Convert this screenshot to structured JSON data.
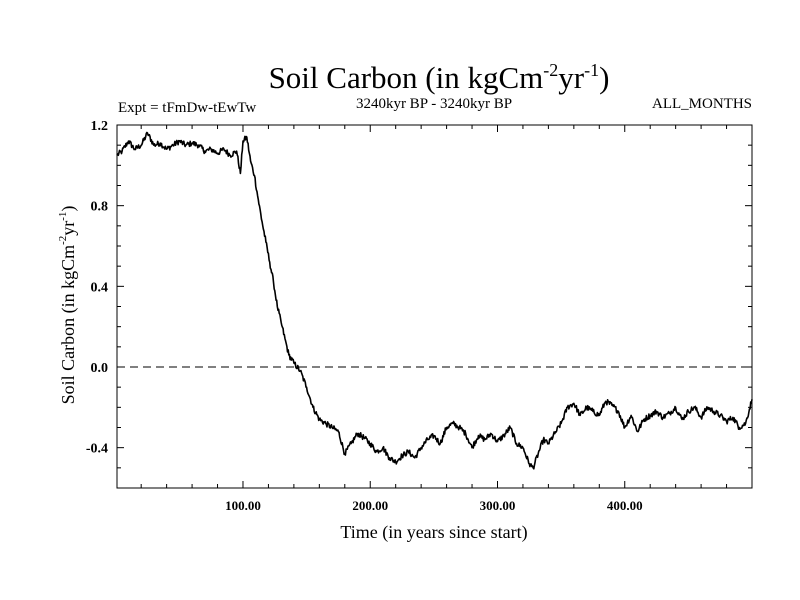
{
  "chart_data": {
    "type": "line",
    "title": "Soil Carbon (in kgCm",
    "title_sup1": "-2",
    "title_mid": "yr",
    "title_sup2": "-1",
    "title_end": ")",
    "subtitle_left": "Expt = tFmDw-tEwTw",
    "subtitle_center": "3240kyr BP - 3240kyr BP",
    "subtitle_right": "ALL_MONTHS",
    "xlabel": "Time (in years since start)",
    "ylabel": "Soil Carbon (in kgCm",
    "ylabel_sup1": "-2",
    "ylabel_mid": "yr",
    "ylabel_sup2": "-1",
    "ylabel_end": ")",
    "xlim": [
      1,
      500
    ],
    "ylim": [
      -0.6,
      1.2
    ],
    "x_ticks": [
      {
        "value": 100,
        "label": "100.00"
      },
      {
        "value": 200,
        "label": "200.00"
      },
      {
        "value": 300,
        "label": "300.00"
      },
      {
        "value": 400,
        "label": "400.00"
      }
    ],
    "y_ticks": [
      {
        "value": 1.2,
        "label": "1.2"
      },
      {
        "value": 0.8,
        "label": "0.8"
      },
      {
        "value": 0.4,
        "label": "0.4"
      },
      {
        "value": 0.0,
        "label": "0.0"
      },
      {
        "value": -0.4,
        "label": "-0.4"
      }
    ],
    "zero_line": 0.0,
    "series": [
      {
        "name": "Soil Carbon",
        "color": "#000000",
        "x": [
          1,
          5,
          10,
          15,
          20,
          25,
          30,
          35,
          40,
          45,
          50,
          55,
          60,
          65,
          70,
          75,
          80,
          85,
          90,
          95,
          98,
          100,
          103,
          106,
          109,
          112,
          115,
          118,
          121,
          124,
          127,
          130,
          133,
          136,
          140,
          145,
          150,
          155,
          160,
          165,
          170,
          175,
          180,
          185,
          190,
          195,
          200,
          205,
          210,
          215,
          220,
          225,
          230,
          235,
          240,
          245,
          250,
          255,
          260,
          265,
          270,
          275,
          280,
          285,
          290,
          295,
          300,
          305,
          310,
          315,
          320,
          325,
          328,
          332,
          336,
          340,
          345,
          350,
          355,
          360,
          365,
          370,
          375,
          380,
          385,
          390,
          395,
          400,
          405,
          410,
          415,
          420,
          425,
          430,
          435,
          440,
          445,
          450,
          455,
          460,
          465,
          470,
          475,
          480,
          485,
          490,
          495,
          500
        ],
        "y": [
          1.05,
          1.07,
          1.12,
          1.08,
          1.1,
          1.16,
          1.1,
          1.11,
          1.08,
          1.1,
          1.12,
          1.1,
          1.11,
          1.1,
          1.07,
          1.08,
          1.06,
          1.08,
          1.05,
          1.07,
          0.96,
          1.12,
          1.14,
          1.02,
          0.95,
          0.83,
          0.72,
          0.62,
          0.52,
          0.42,
          0.3,
          0.22,
          0.14,
          0.06,
          0.02,
          -0.02,
          -0.1,
          -0.2,
          -0.26,
          -0.28,
          -0.3,
          -0.32,
          -0.43,
          -0.38,
          -0.33,
          -0.35,
          -0.38,
          -0.42,
          -0.4,
          -0.45,
          -0.47,
          -0.44,
          -0.42,
          -0.45,
          -0.4,
          -0.36,
          -0.34,
          -0.38,
          -0.3,
          -0.28,
          -0.3,
          -0.33,
          -0.4,
          -0.34,
          -0.36,
          -0.33,
          -0.37,
          -0.34,
          -0.3,
          -0.38,
          -0.4,
          -0.48,
          -0.5,
          -0.43,
          -0.36,
          -0.38,
          -0.33,
          -0.28,
          -0.2,
          -0.18,
          -0.24,
          -0.2,
          -0.22,
          -0.24,
          -0.17,
          -0.19,
          -0.22,
          -0.3,
          -0.24,
          -0.32,
          -0.26,
          -0.24,
          -0.22,
          -0.25,
          -0.23,
          -0.2,
          -0.26,
          -0.22,
          -0.2,
          -0.25,
          -0.2,
          -0.22,
          -0.24,
          -0.27,
          -0.25,
          -0.3,
          -0.28,
          -0.16
        ]
      }
    ]
  }
}
